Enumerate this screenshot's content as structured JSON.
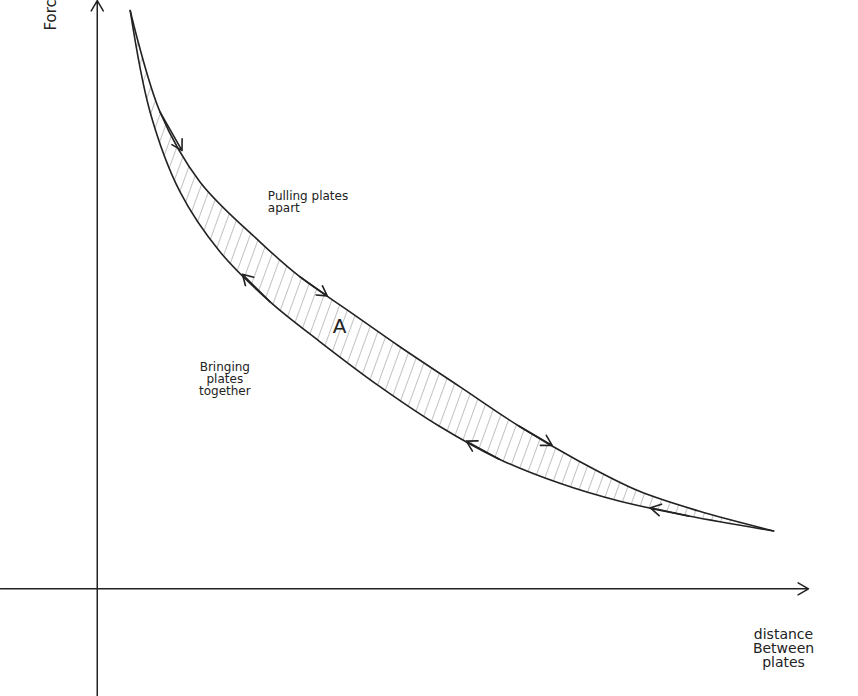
{
  "chart_data": {
    "type": "line",
    "x_label": "distance Between plates",
    "y_label": "Force",
    "xlim": [
      -9.7,
      71.3
    ],
    "ylim": [
      -10.8,
      59
    ],
    "xticks": [],
    "yticks": [],
    "tick_labels": false,
    "grid": false,
    "series": [
      {
        "name": "Pulling plates apart",
        "color": "#222222",
        "x": [
          3.3,
          6.3,
          10.3,
          16.3,
          20.3,
          25.3,
          30.3,
          36.3,
          42.3,
          48.3,
          54.3,
          60.3,
          67.8
        ],
        "values": [
          58,
          47.8,
          40.8,
          34.8,
          31.3,
          27.8,
          24.3,
          20.3,
          16.3,
          12.8,
          9.8,
          7.8,
          5.8
        ]
      },
      {
        "name": "Bringing plates together",
        "color": "#222222",
        "x": [
          67.8,
          59.3,
          52.3,
          46.3,
          40.3,
          34.3,
          28.3,
          22.3,
          17.3,
          12.3,
          8.3,
          5.3,
          3.3
        ],
        "values": [
          5.8,
          7.3,
          8.8,
          10.6,
          13.0,
          16.3,
          20.3,
          24.8,
          28.8,
          33.8,
          39.8,
          47.8,
          58
        ]
      }
    ],
    "area_label": "A"
  }
}
